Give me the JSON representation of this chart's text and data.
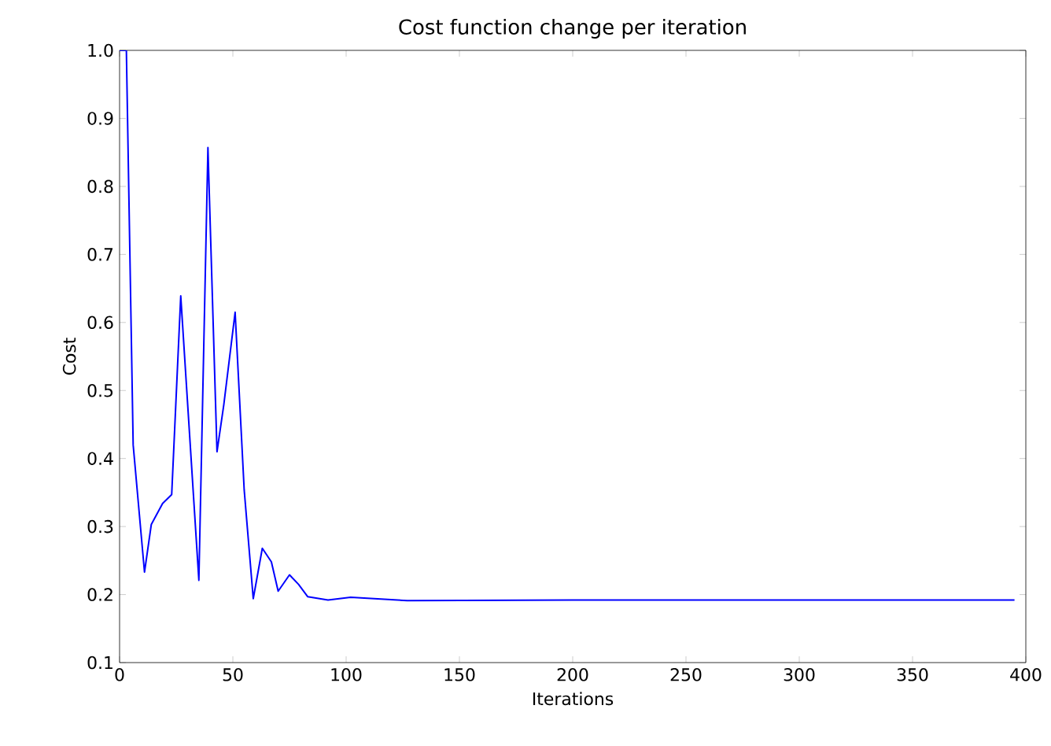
{
  "chart_data": {
    "type": "line",
    "title": "Cost function change per iteration",
    "xlabel": "Iterations",
    "ylabel": "Cost",
    "x": [
      0,
      3,
      6,
      11,
      14,
      19,
      23,
      27,
      35,
      39,
      43,
      46,
      51,
      55,
      59,
      63,
      67,
      70,
      75,
      79,
      83,
      92,
      102,
      127,
      200,
      300,
      395
    ],
    "series": [
      {
        "color": "#0000ff",
        "values": [
          1.0,
          1.0,
          0.42,
          0.233,
          0.303,
          0.334,
          0.347,
          0.639,
          0.221,
          0.857,
          0.41,
          0.479,
          0.615,
          0.354,
          0.194,
          0.268,
          0.248,
          0.205,
          0.229,
          0.215,
          0.197,
          0.192,
          0.196,
          0.191,
          0.192,
          0.192,
          0.192
        ]
      }
    ],
    "xlim": [
      0,
      400
    ],
    "ylim": [
      0.1,
      1.0
    ],
    "xticks": [
      0,
      50,
      100,
      150,
      200,
      250,
      300,
      350,
      400
    ],
    "yticks": [
      {
        "value": 0.1,
        "label": "0.1"
      },
      {
        "value": 0.2,
        "label": "0.2"
      },
      {
        "value": 0.3,
        "label": "0.3"
      },
      {
        "value": 0.4,
        "label": "0.4"
      },
      {
        "value": 0.5,
        "label": "0.5"
      },
      {
        "value": 0.6,
        "label": "0.6"
      },
      {
        "value": 0.7,
        "label": "0.7"
      },
      {
        "value": 0.8,
        "label": "0.8"
      },
      {
        "value": 0.9,
        "label": "0.9"
      },
      {
        "value": 1.0,
        "label": "1.0"
      }
    ],
    "grid": false
  }
}
